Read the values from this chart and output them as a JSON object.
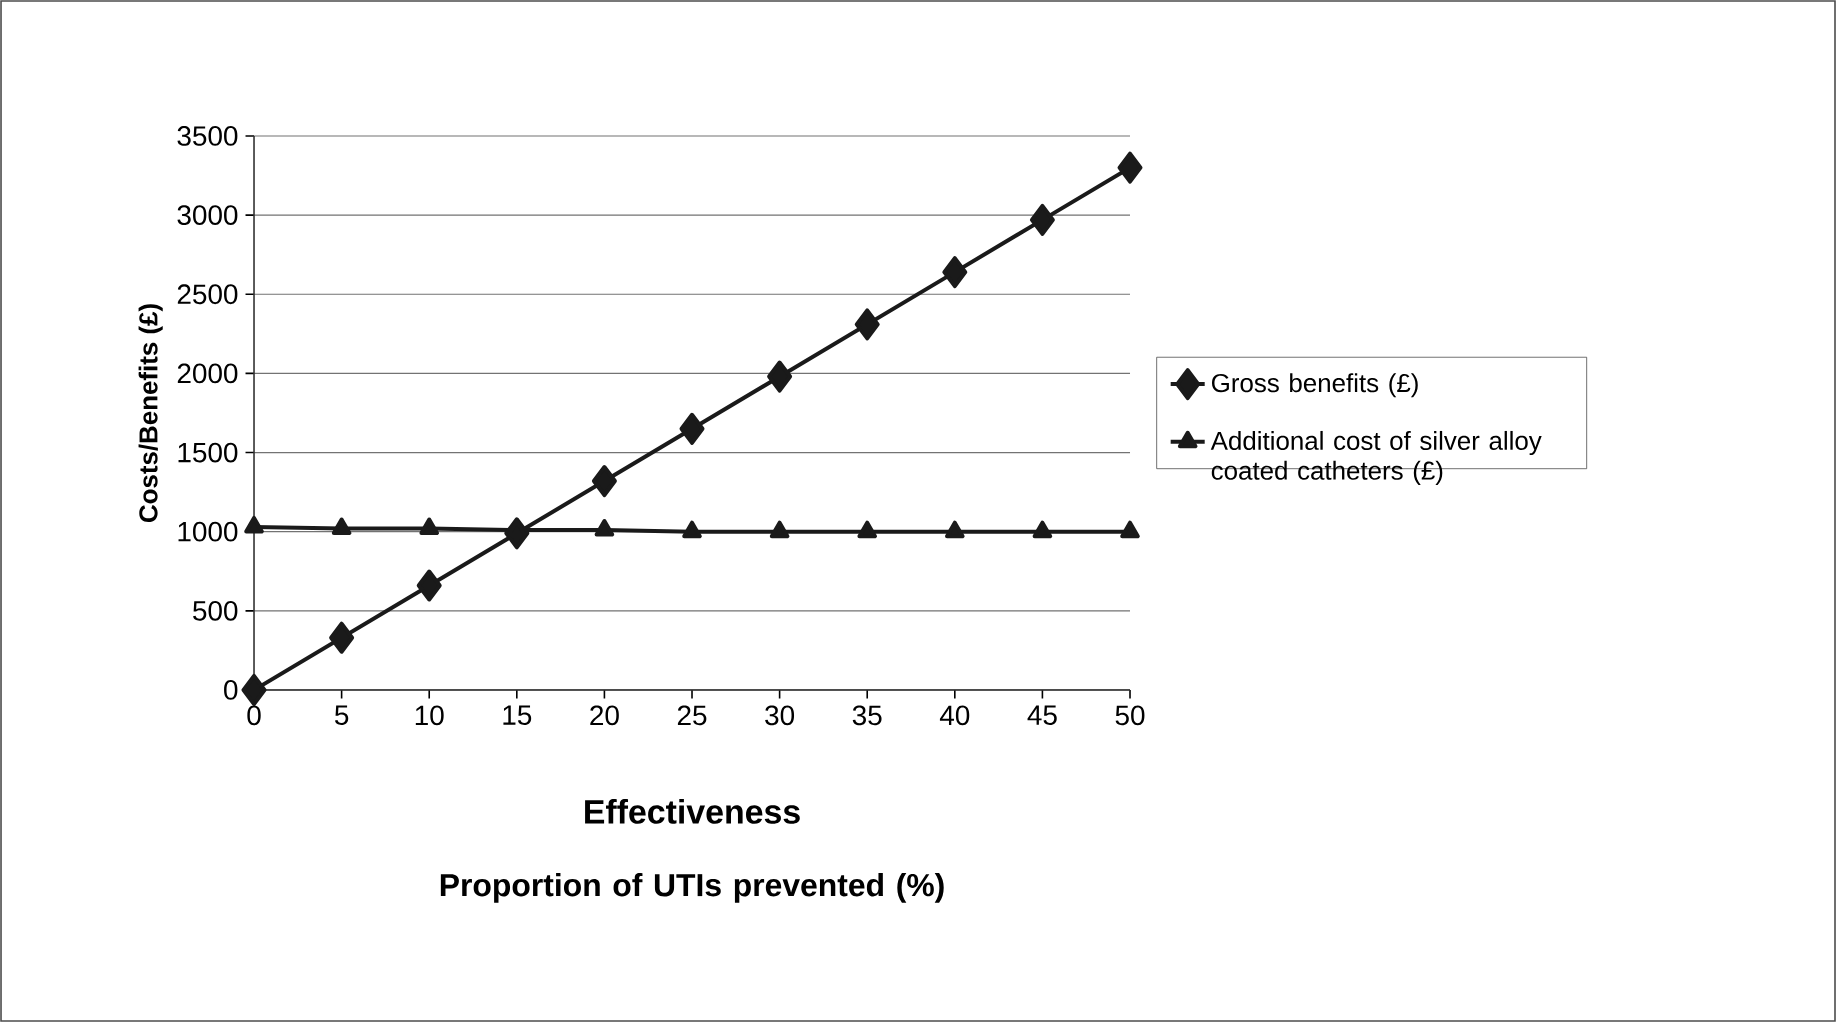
{
  "chart_data": {
    "type": "line",
    "xlabel": "Effectiveness",
    "ylabel": "Costs/Benefits (£)",
    "annotations": [
      "Proportion of UTIs prevented (%)"
    ],
    "x": [
      0,
      5,
      10,
      15,
      20,
      25,
      30,
      35,
      40,
      45,
      50
    ],
    "series": [
      {
        "name": "Gross benefits (£)",
        "color": "#1a1a1a",
        "marker": "diamond",
        "values": [
          0,
          330,
          660,
          990,
          1320,
          1650,
          1980,
          2310,
          2640,
          2970,
          3300
        ]
      },
      {
        "name": "Additional cost of silver alloy coated catheters (£)",
        "color": "#1a1a1a",
        "marker": "triangle",
        "values": [
          1030,
          1020,
          1020,
          1010,
          1010,
          1000,
          1000,
          1000,
          1000,
          1000,
          1000
        ]
      }
    ],
    "xlim": [
      0,
      50
    ],
    "xticks": [
      0,
      5,
      10,
      15,
      20,
      25,
      30,
      35,
      40,
      45,
      50
    ],
    "ylim": [
      0,
      3500
    ],
    "yticks": [
      0,
      500,
      1000,
      1500,
      2000,
      2500,
      3000,
      3500
    ],
    "grid": "y",
    "legend": "right",
    "line_style": "solid"
  }
}
